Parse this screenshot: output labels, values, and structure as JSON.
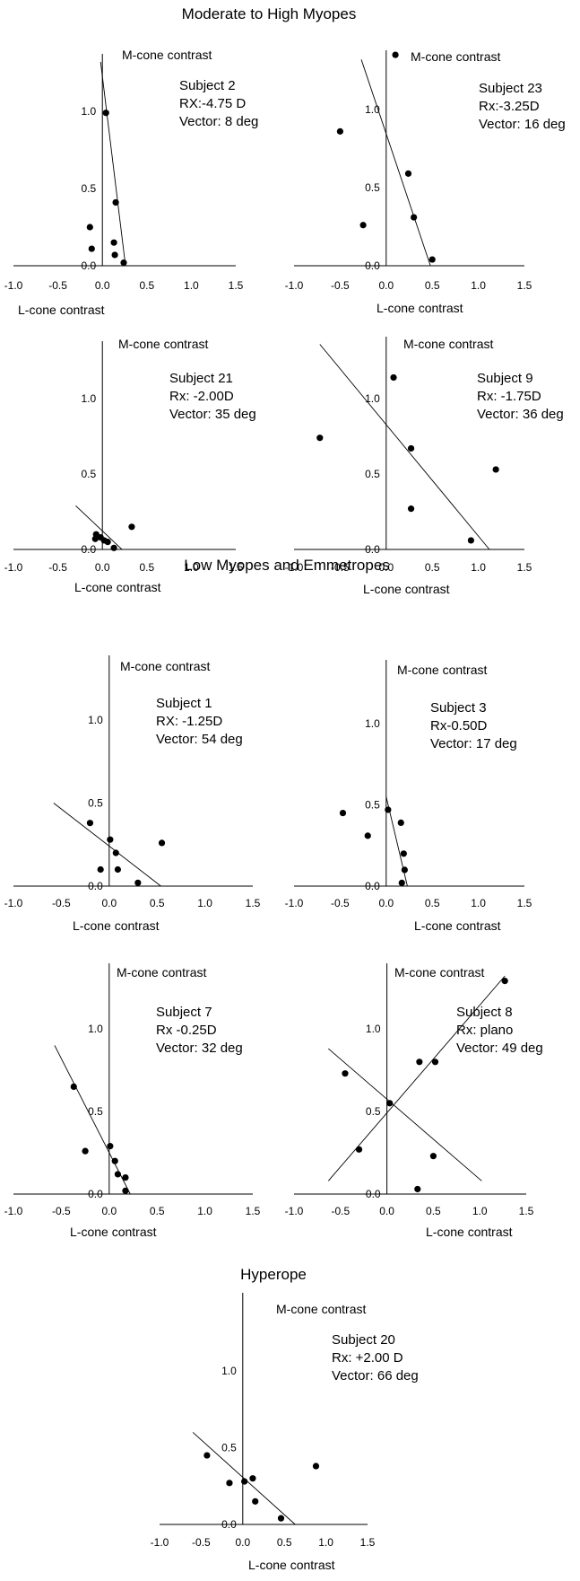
{
  "sections": {
    "s1_title": "Moderate to High Myopes",
    "s2_title": "Low Myopes and Emmetropes",
    "s3_title": "Hyperope"
  },
  "chart_data": [
    {
      "type": "scatter",
      "subject": "Subject 2",
      "rx": "RX:-4.75 D",
      "vector": "Vector: 8 deg",
      "xlabel": "L-cone contrast",
      "ylabel": "M-cone contrast",
      "xlim": [
        -1.0,
        1.5
      ],
      "ylim": [
        0.0,
        1.3
      ],
      "xticks": [
        "-1.0",
        "-0.5",
        "0.0",
        "0.5",
        "1.0",
        "1.5"
      ],
      "yticks": [
        "0.0",
        "0.5",
        "1.0"
      ],
      "points": [
        [
          0.04,
          0.99
        ],
        [
          0.15,
          0.41
        ],
        [
          -0.14,
          0.25
        ],
        [
          0.13,
          0.15
        ],
        [
          -0.12,
          0.11
        ],
        [
          0.14,
          0.07
        ],
        [
          0.24,
          0.02
        ]
      ],
      "fit_lines": [
        [
          [
            -0.02,
            1.32
          ],
          [
            0.26,
            0.0
          ]
        ]
      ]
    },
    {
      "type": "scatter",
      "subject": "Subject 23",
      "rx": "Rx:-3.25D",
      "vector": "Vector: 16 deg",
      "xlabel": "L-cone contrast",
      "ylabel": "M-cone contrast",
      "xlim": [
        -1.0,
        1.5
      ],
      "ylim": [
        0.0,
        1.3
      ],
      "xticks": [
        "-1.0",
        "-0.5",
        "0.0",
        "0.5",
        "1.0",
        "1.5"
      ],
      "yticks": [
        "0.0",
        "0.5",
        "1.0"
      ],
      "points": [
        [
          0.1,
          1.35
        ],
        [
          -0.5,
          0.86
        ],
        [
          0.24,
          0.59
        ],
        [
          -0.25,
          0.26
        ],
        [
          0.3,
          0.31
        ],
        [
          0.5,
          0.04
        ]
      ],
      "fit_lines": [
        [
          [
            -0.27,
            1.32
          ],
          [
            0.48,
            0.0
          ]
        ]
      ]
    },
    {
      "type": "scatter",
      "subject": "Subject 21",
      "rx": "Rx: -2.00D",
      "vector": "Vector: 35 deg",
      "xlabel": "L-cone contrast",
      "ylabel": "M-cone contrast",
      "xlim": [
        -1.0,
        1.5
      ],
      "ylim": [
        0.0,
        1.3
      ],
      "xticks": [
        "-1.0",
        "-0.5",
        "0.0",
        "0.5",
        "1.0",
        "1.5"
      ],
      "yticks": [
        "0.0",
        "0.5",
        "1.0"
      ],
      "points": [
        [
          0.33,
          0.15
        ],
        [
          -0.07,
          0.1
        ],
        [
          -0.08,
          0.07
        ],
        [
          -0.02,
          0.08
        ],
        [
          0.02,
          0.06
        ],
        [
          0.06,
          0.05
        ],
        [
          0.13,
          0.01
        ]
      ],
      "fit_lines": [
        [
          [
            -0.3,
            0.29
          ],
          [
            0.22,
            0.0
          ]
        ]
      ]
    },
    {
      "type": "scatter",
      "subject": "Subject 9",
      "rx": "Rx: -1.75D",
      "vector": "Vector: 36 deg",
      "xlabel": "L-cone contrast",
      "ylabel": "M-cone contrast",
      "xlim": [
        -1.0,
        1.5
      ],
      "ylim": [
        0.0,
        1.3
      ],
      "xticks": [
        "-1.0",
        "-0.5",
        "0.0",
        "0.5",
        "1.0",
        "1.5"
      ],
      "yticks": [
        "0.0",
        "0.5",
        "1.0"
      ],
      "points": [
        [
          0.08,
          1.14
        ],
        [
          -0.72,
          0.74
        ],
        [
          0.27,
          0.67
        ],
        [
          1.19,
          0.53
        ],
        [
          0.27,
          0.27
        ],
        [
          0.92,
          0.06
        ]
      ],
      "fit_lines": [
        [
          [
            -0.72,
            1.36
          ],
          [
            1.12,
            0.0
          ]
        ]
      ]
    },
    {
      "type": "scatter",
      "subject": "Subject 1",
      "rx": "RX: -1.25D",
      "vector": "Vector: 54 deg",
      "xlabel": "L-cone contrast",
      "ylabel": "M-cone contrast",
      "xlim": [
        -1.0,
        1.5
      ],
      "ylim": [
        0.0,
        1.3
      ],
      "xticks": [
        "-1.0",
        "-0.5",
        "0.0",
        "0.5",
        "1.0",
        "1.5"
      ],
      "yticks": [
        "0.0",
        "0.5",
        "1.0"
      ],
      "points": [
        [
          -0.2,
          0.38
        ],
        [
          0.01,
          0.28
        ],
        [
          0.55,
          0.26
        ],
        [
          0.07,
          0.2
        ],
        [
          0.09,
          0.1
        ],
        [
          -0.09,
          0.1
        ],
        [
          0.3,
          0.02
        ]
      ],
      "fit_lines": [
        [
          [
            -0.58,
            0.5
          ],
          [
            0.54,
            0.0
          ]
        ]
      ]
    },
    {
      "type": "scatter",
      "subject": "Subject 3",
      "rx": "Rx-0.50D",
      "vector": "Vector: 17 deg",
      "xlabel": "L-cone contrast",
      "ylabel": "M-cone contrast",
      "xlim": [
        -1.0,
        1.5
      ],
      "ylim": [
        0.0,
        1.3
      ],
      "xticks": [
        "-1.0",
        "-0.5",
        "0.0",
        "0.5",
        "1.0",
        "1.5"
      ],
      "yticks": [
        "0.0",
        "0.5",
        "1.0"
      ],
      "points": [
        [
          -0.47,
          0.45
        ],
        [
          0.02,
          0.47
        ],
        [
          0.16,
          0.39
        ],
        [
          -0.2,
          0.31
        ],
        [
          0.19,
          0.2
        ],
        [
          0.2,
          0.1
        ],
        [
          0.17,
          0.02
        ]
      ],
      "fit_lines": [
        [
          [
            0.0,
            0.55
          ],
          [
            0.23,
            0.0
          ]
        ]
      ]
    },
    {
      "type": "scatter",
      "subject": "Subject 7",
      "rx": "Rx -0.25D",
      "vector": "Vector: 32 deg",
      "xlabel": "L-cone contrast",
      "ylabel": "M-cone contrast",
      "xlim": [
        -1.0,
        1.5
      ],
      "ylim": [
        0.0,
        1.3
      ],
      "xticks": [
        "-1.0",
        "-0.5",
        "0.0",
        "0.5",
        "1.0",
        "1.5"
      ],
      "yticks": [
        "0.0",
        "0.5",
        "1.0"
      ],
      "points": [
        [
          -0.37,
          0.65
        ],
        [
          0.01,
          0.29
        ],
        [
          -0.25,
          0.26
        ],
        [
          0.06,
          0.2
        ],
        [
          0.09,
          0.12
        ],
        [
          0.17,
          0.1
        ],
        [
          0.17,
          0.02
        ]
      ],
      "fit_lines": [
        [
          [
            -0.57,
            0.9
          ],
          [
            0.22,
            0.0
          ]
        ]
      ]
    },
    {
      "type": "scatter",
      "subject": "Subject 8",
      "rx": "Rx: plano",
      "vector": "Vector: 49 deg",
      "xlabel": "L-cone contrast",
      "ylabel": "M-cone contrast",
      "xlim": [
        -1.0,
        1.5
      ],
      "ylim": [
        0.0,
        1.3
      ],
      "xticks": [
        "-1.0",
        "-0.5",
        "0.0",
        "0.5",
        "1.0",
        "1.5"
      ],
      "yticks": [
        "0.0",
        "0.5",
        "1.0"
      ],
      "points": [
        [
          1.27,
          1.29
        ],
        [
          0.52,
          0.8
        ],
        [
          0.35,
          0.8
        ],
        [
          -0.45,
          0.73
        ],
        [
          0.03,
          0.55
        ],
        [
          -0.3,
          0.27
        ],
        [
          0.5,
          0.23
        ],
        [
          0.33,
          0.03
        ]
      ],
      "fit_lines": [
        [
          [
            -0.63,
            0.08
          ],
          [
            1.27,
            1.32
          ]
        ],
        [
          [
            -0.63,
            0.88
          ],
          [
            1.02,
            0.08
          ]
        ]
      ]
    },
    {
      "type": "scatter",
      "subject": "Subject 20",
      "rx": "Rx: +2.00 D",
      "vector": "Vector: 66 deg",
      "xlabel": "L-cone contrast",
      "ylabel": "M-cone contrast",
      "xlim": [
        -1.0,
        1.5
      ],
      "ylim": [
        0.0,
        1.3
      ],
      "xticks": [
        "-1.0",
        "-0.5",
        "0.0",
        "0.5",
        "1.0",
        "1.5"
      ],
      "yticks": [
        "0.0",
        "0.5",
        "1.0"
      ],
      "points": [
        [
          0.88,
          0.38
        ],
        [
          -0.43,
          0.45
        ],
        [
          0.12,
          0.3
        ],
        [
          0.02,
          0.28
        ],
        [
          -0.16,
          0.27
        ],
        [
          0.15,
          0.15
        ],
        [
          0.46,
          0.04
        ]
      ],
      "fit_lines": [
        [
          [
            -0.6,
            0.6
          ],
          [
            0.63,
            0.0
          ]
        ]
      ]
    }
  ]
}
